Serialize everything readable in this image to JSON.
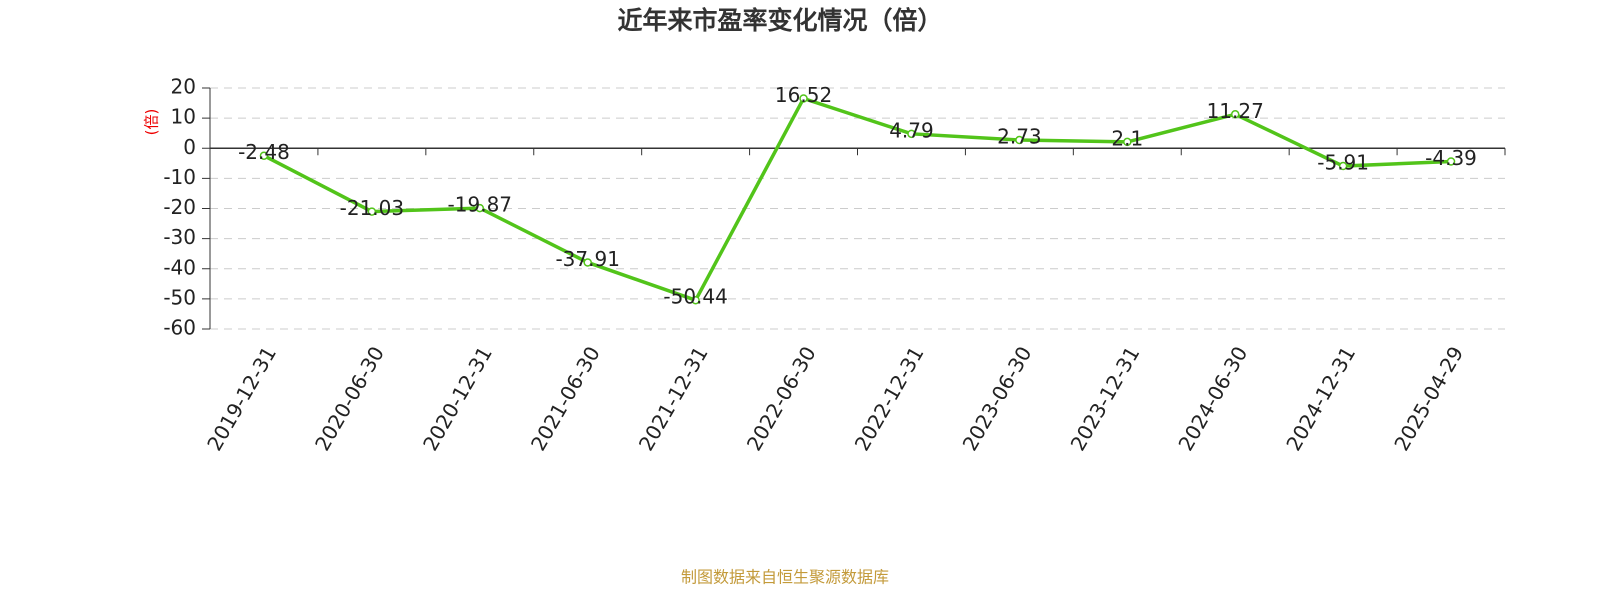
{
  "chart_data": {
    "type": "line",
    "title": "近年来市盈率变化情况（倍）",
    "y_label": "(倍)",
    "categories": [
      "2019-12-31",
      "2020-06-30",
      "2020-12-31",
      "2021-06-30",
      "2021-12-31",
      "2022-06-30",
      "2022-12-31",
      "2023-06-30",
      "2023-12-31",
      "2024-06-30",
      "2024-12-31",
      "2025-04-29"
    ],
    "values": [
      -2.48,
      -21.03,
      -19.87,
      -37.91,
      -50.44,
      16.52,
      4.79,
      2.73,
      2.1,
      11.27,
      -5.91,
      -4.39
    ],
    "color": "#52c41a",
    "ylim": [
      -60,
      20
    ],
    "yticks": [
      -60,
      -50,
      -40,
      -30,
      -20,
      -10,
      0,
      10,
      20
    ],
    "grid": true,
    "source": "制图数据来自恒生聚源数据库"
  }
}
